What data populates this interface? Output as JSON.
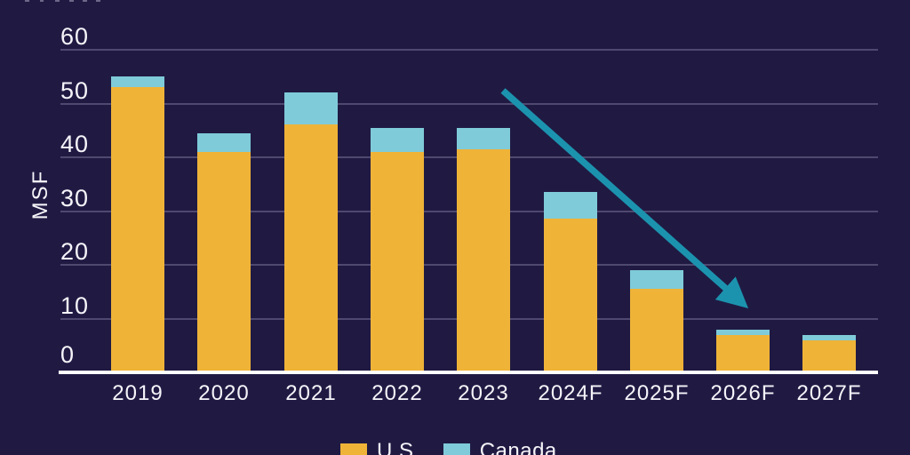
{
  "chart_data": {
    "type": "bar",
    "stacked": true,
    "title": "",
    "ylabel": "MSF",
    "categories": [
      "2019",
      "2020",
      "2021",
      "2022",
      "2023",
      "2024F",
      "2025F",
      "2026F",
      "2027F"
    ],
    "series": [
      {
        "name": "U.S.",
        "color": "#EFB338",
        "values": [
          53,
          41,
          46,
          41,
          41.5,
          28.5,
          15.5,
          7,
          6
        ]
      },
      {
        "name": "Canada",
        "color": "#7FCBD9",
        "values": [
          2,
          3.5,
          6,
          4.5,
          4,
          5,
          3.5,
          1,
          1
        ]
      }
    ],
    "totals": [
      55,
      44.5,
      52,
      45.5,
      45.5,
      33.5,
      19,
      8,
      7
    ],
    "y_ticks": [
      0,
      10,
      20,
      30,
      40,
      50,
      60
    ],
    "ylim": [
      0,
      62
    ],
    "grid": true,
    "legend_position": "bottom",
    "annotation": {
      "type": "arrow",
      "direction": "down-right",
      "color": "#1C93AE"
    }
  },
  "colors": {
    "background": "#201A43",
    "gridline": "#4F4970",
    "axis_line": "#FFFFFF",
    "us_bar": "#EFB338",
    "canada_bar": "#7FCBD9",
    "arrow": "#1C93AE",
    "text": "#F6F4F9"
  }
}
